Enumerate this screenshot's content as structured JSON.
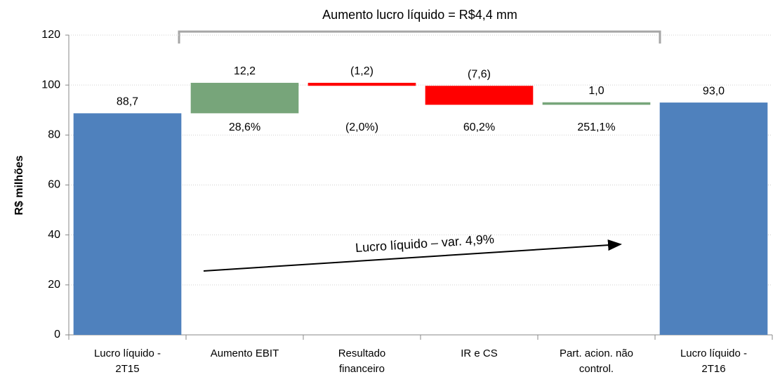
{
  "chart_data": {
    "type": "waterfall",
    "title": "Aumento lucro líquido = R$4,4 mm",
    "y_label": "R$ milhões",
    "annotation": "Lucro líquido – var. 4,9%",
    "categories": [
      [
        "Lucro líquido -",
        "2T15"
      ],
      [
        "Aumento EBIT"
      ],
      [
        "Resultado",
        "financeiro"
      ],
      [
        "IR e CS"
      ],
      [
        "Part. acion. não",
        "control."
      ],
      [
        "Lucro líquido -",
        "2T16"
      ]
    ],
    "values": [
      88.7,
      12.2,
      -1.2,
      -7.6,
      1.0,
      93.0
    ],
    "value_labels": [
      "88,7",
      "12,2",
      "(1,2)",
      "(7,6)",
      "1,0",
      "93,0"
    ],
    "percent_labels": [
      null,
      "28,6%",
      "(2,0%)",
      "60,2%",
      "251,1%",
      null
    ],
    "total": [
      true,
      false,
      false,
      false,
      false,
      true
    ],
    "colors": {
      "total": "#4f81bd",
      "increase": "#77a57a",
      "decrease": "#ff0000"
    },
    "ylim": [
      0,
      120
    ],
    "yticks": [
      0,
      20,
      40,
      60,
      80,
      100,
      120
    ],
    "grid": true
  }
}
